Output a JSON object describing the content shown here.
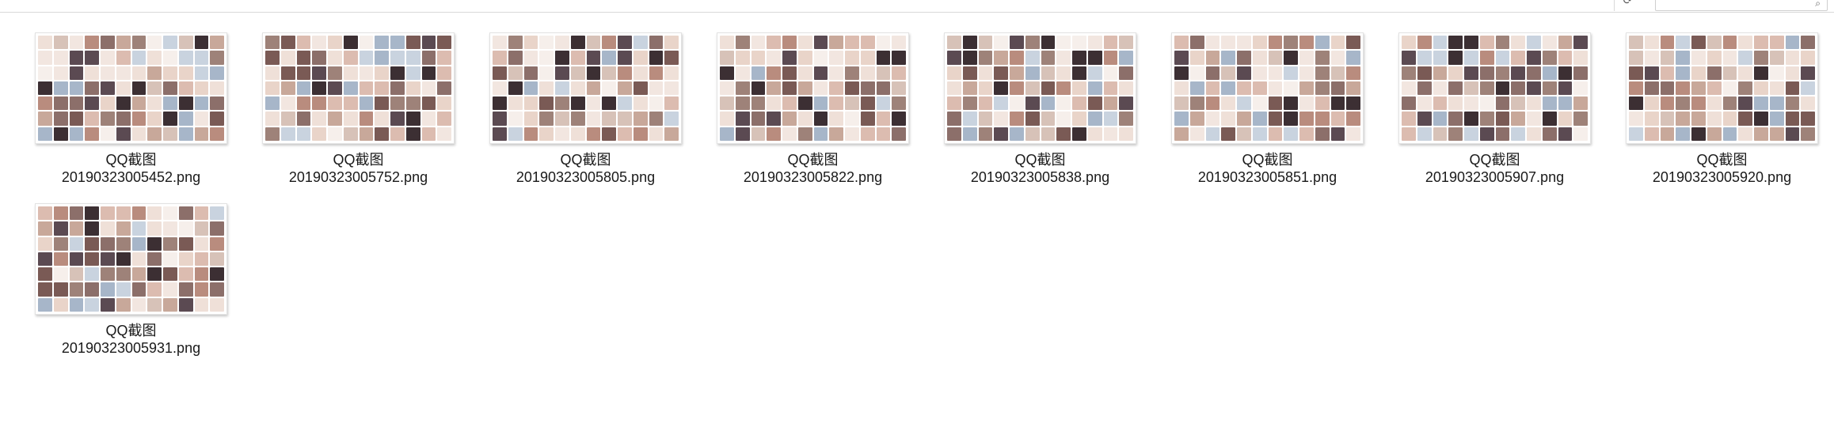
{
  "address_bar": {
    "breadcrumb_text": "",
    "refresh_icon": "refresh-icon",
    "search_icon": "search-icon",
    "search_placeholder": ""
  },
  "files": [
    {
      "name_line1": "QQ截图",
      "name_line2": "20190323005452.png"
    },
    {
      "name_line1": "QQ截图",
      "name_line2": "20190323005752.png"
    },
    {
      "name_line1": "QQ截图",
      "name_line2": "20190323005805.png"
    },
    {
      "name_line1": "QQ截图",
      "name_line2": "20190323005822.png"
    },
    {
      "name_line1": "QQ截图",
      "name_line2": "20190323005838.png"
    },
    {
      "name_line1": "QQ截图",
      "name_line2": "20190323005851.png"
    },
    {
      "name_line1": "QQ截图",
      "name_line2": "20190323005907.png"
    },
    {
      "name_line1": "QQ截图",
      "name_line2": "20190323005920.png"
    },
    {
      "name_line1": "QQ截图",
      "name_line2": "20190323005931.png"
    }
  ],
  "thumbnail_palette": [
    "#c8a89a",
    "#e9d4c9",
    "#7a5a55",
    "#f2e6e0",
    "#b98c7e",
    "#3c2f33",
    "#d7c2b8",
    "#a7b6c9",
    "#efe0d8",
    "#8c6f6a",
    "#5b4a52",
    "#dcbcb0",
    "#f6efeb",
    "#9e8279",
    "#c9d3df"
  ]
}
